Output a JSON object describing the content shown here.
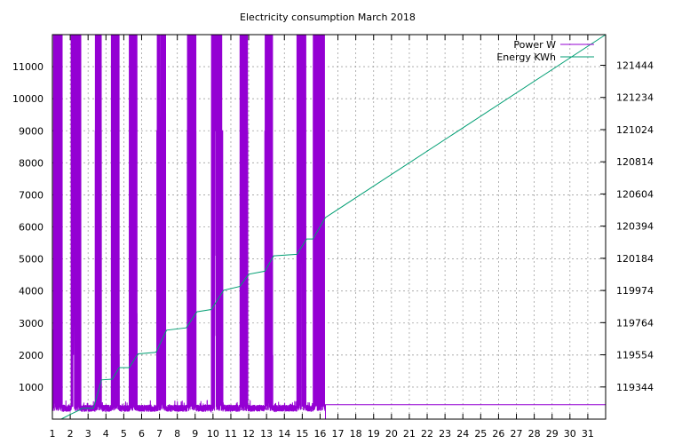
{
  "chart_data": {
    "type": "line",
    "title": "Electricity consumption March 2018",
    "xlabel": "",
    "ylabel": "",
    "y2label": "",
    "xlim": [
      1,
      32
    ],
    "ylim": [
      0,
      12000
    ],
    "y2lim": [
      119134,
      121644
    ],
    "x_ticks": [
      "1",
      "2",
      "3",
      "4",
      "5",
      "6",
      "7",
      "8",
      "9",
      "10",
      "11",
      "12",
      "13",
      "14",
      "15",
      "16",
      "17",
      "18",
      "19",
      "20",
      "21",
      "22",
      "23",
      "24",
      "25",
      "26",
      "27",
      "28",
      "29",
      "30",
      "31"
    ],
    "y_ticks": [
      "1000",
      "2000",
      "3000",
      "4000",
      "5000",
      "6000",
      "7000",
      "8000",
      "9000",
      "10000",
      "11000"
    ],
    "y2_ticks": [
      "119344",
      "119554",
      "119764",
      "119974",
      "120184",
      "120394",
      "120604",
      "120814",
      "121024",
      "121234",
      "121444"
    ],
    "grid": true,
    "legend_position": "top-right",
    "series": [
      {
        "name": "Power W",
        "color": "#9400d3",
        "axis": "y",
        "active_bursts": [
          [
            1.05,
            1.55
          ],
          [
            2.05,
            2.6
          ],
          [
            3.4,
            3.75
          ],
          [
            4.3,
            4.75
          ],
          [
            5.3,
            5.75
          ],
          [
            6.85,
            7.35
          ],
          [
            8.55,
            9.05
          ],
          [
            9.9,
            10.55
          ],
          [
            11.5,
            11.95
          ],
          [
            12.9,
            13.35
          ],
          [
            14.7,
            15.2
          ],
          [
            15.6,
            16.25
          ]
        ],
        "idle_level_active_period": 350,
        "idle_level_after": 450,
        "data_end": 16.3,
        "peak_levels": [
          12000,
          9000,
          5100,
          4500,
          3300,
          2800,
          2600,
          2000
        ]
      },
      {
        "name": "Energy KWh",
        "color": "#009e73",
        "axis": "y2",
        "x": [
          1.0,
          1.5,
          2.0,
          2.55,
          2.65,
          3.3,
          3.75,
          4.35,
          4.75,
          5.3,
          5.8,
          6.8,
          7.4,
          8.5,
          9.1,
          9.9,
          10.6,
          11.5,
          12.0,
          12.9,
          13.4,
          14.7,
          15.25,
          15.6,
          16.3,
          32.0
        ],
        "y": [
          119134,
          119134,
          119165,
          119195,
          119205,
          119205,
          119390,
          119395,
          119470,
          119470,
          119560,
          119570,
          119715,
          119730,
          119835,
          119850,
          119975,
          120000,
          120080,
          120100,
          120200,
          120210,
          120310,
          120310,
          120450,
          121645
        ]
      }
    ]
  }
}
